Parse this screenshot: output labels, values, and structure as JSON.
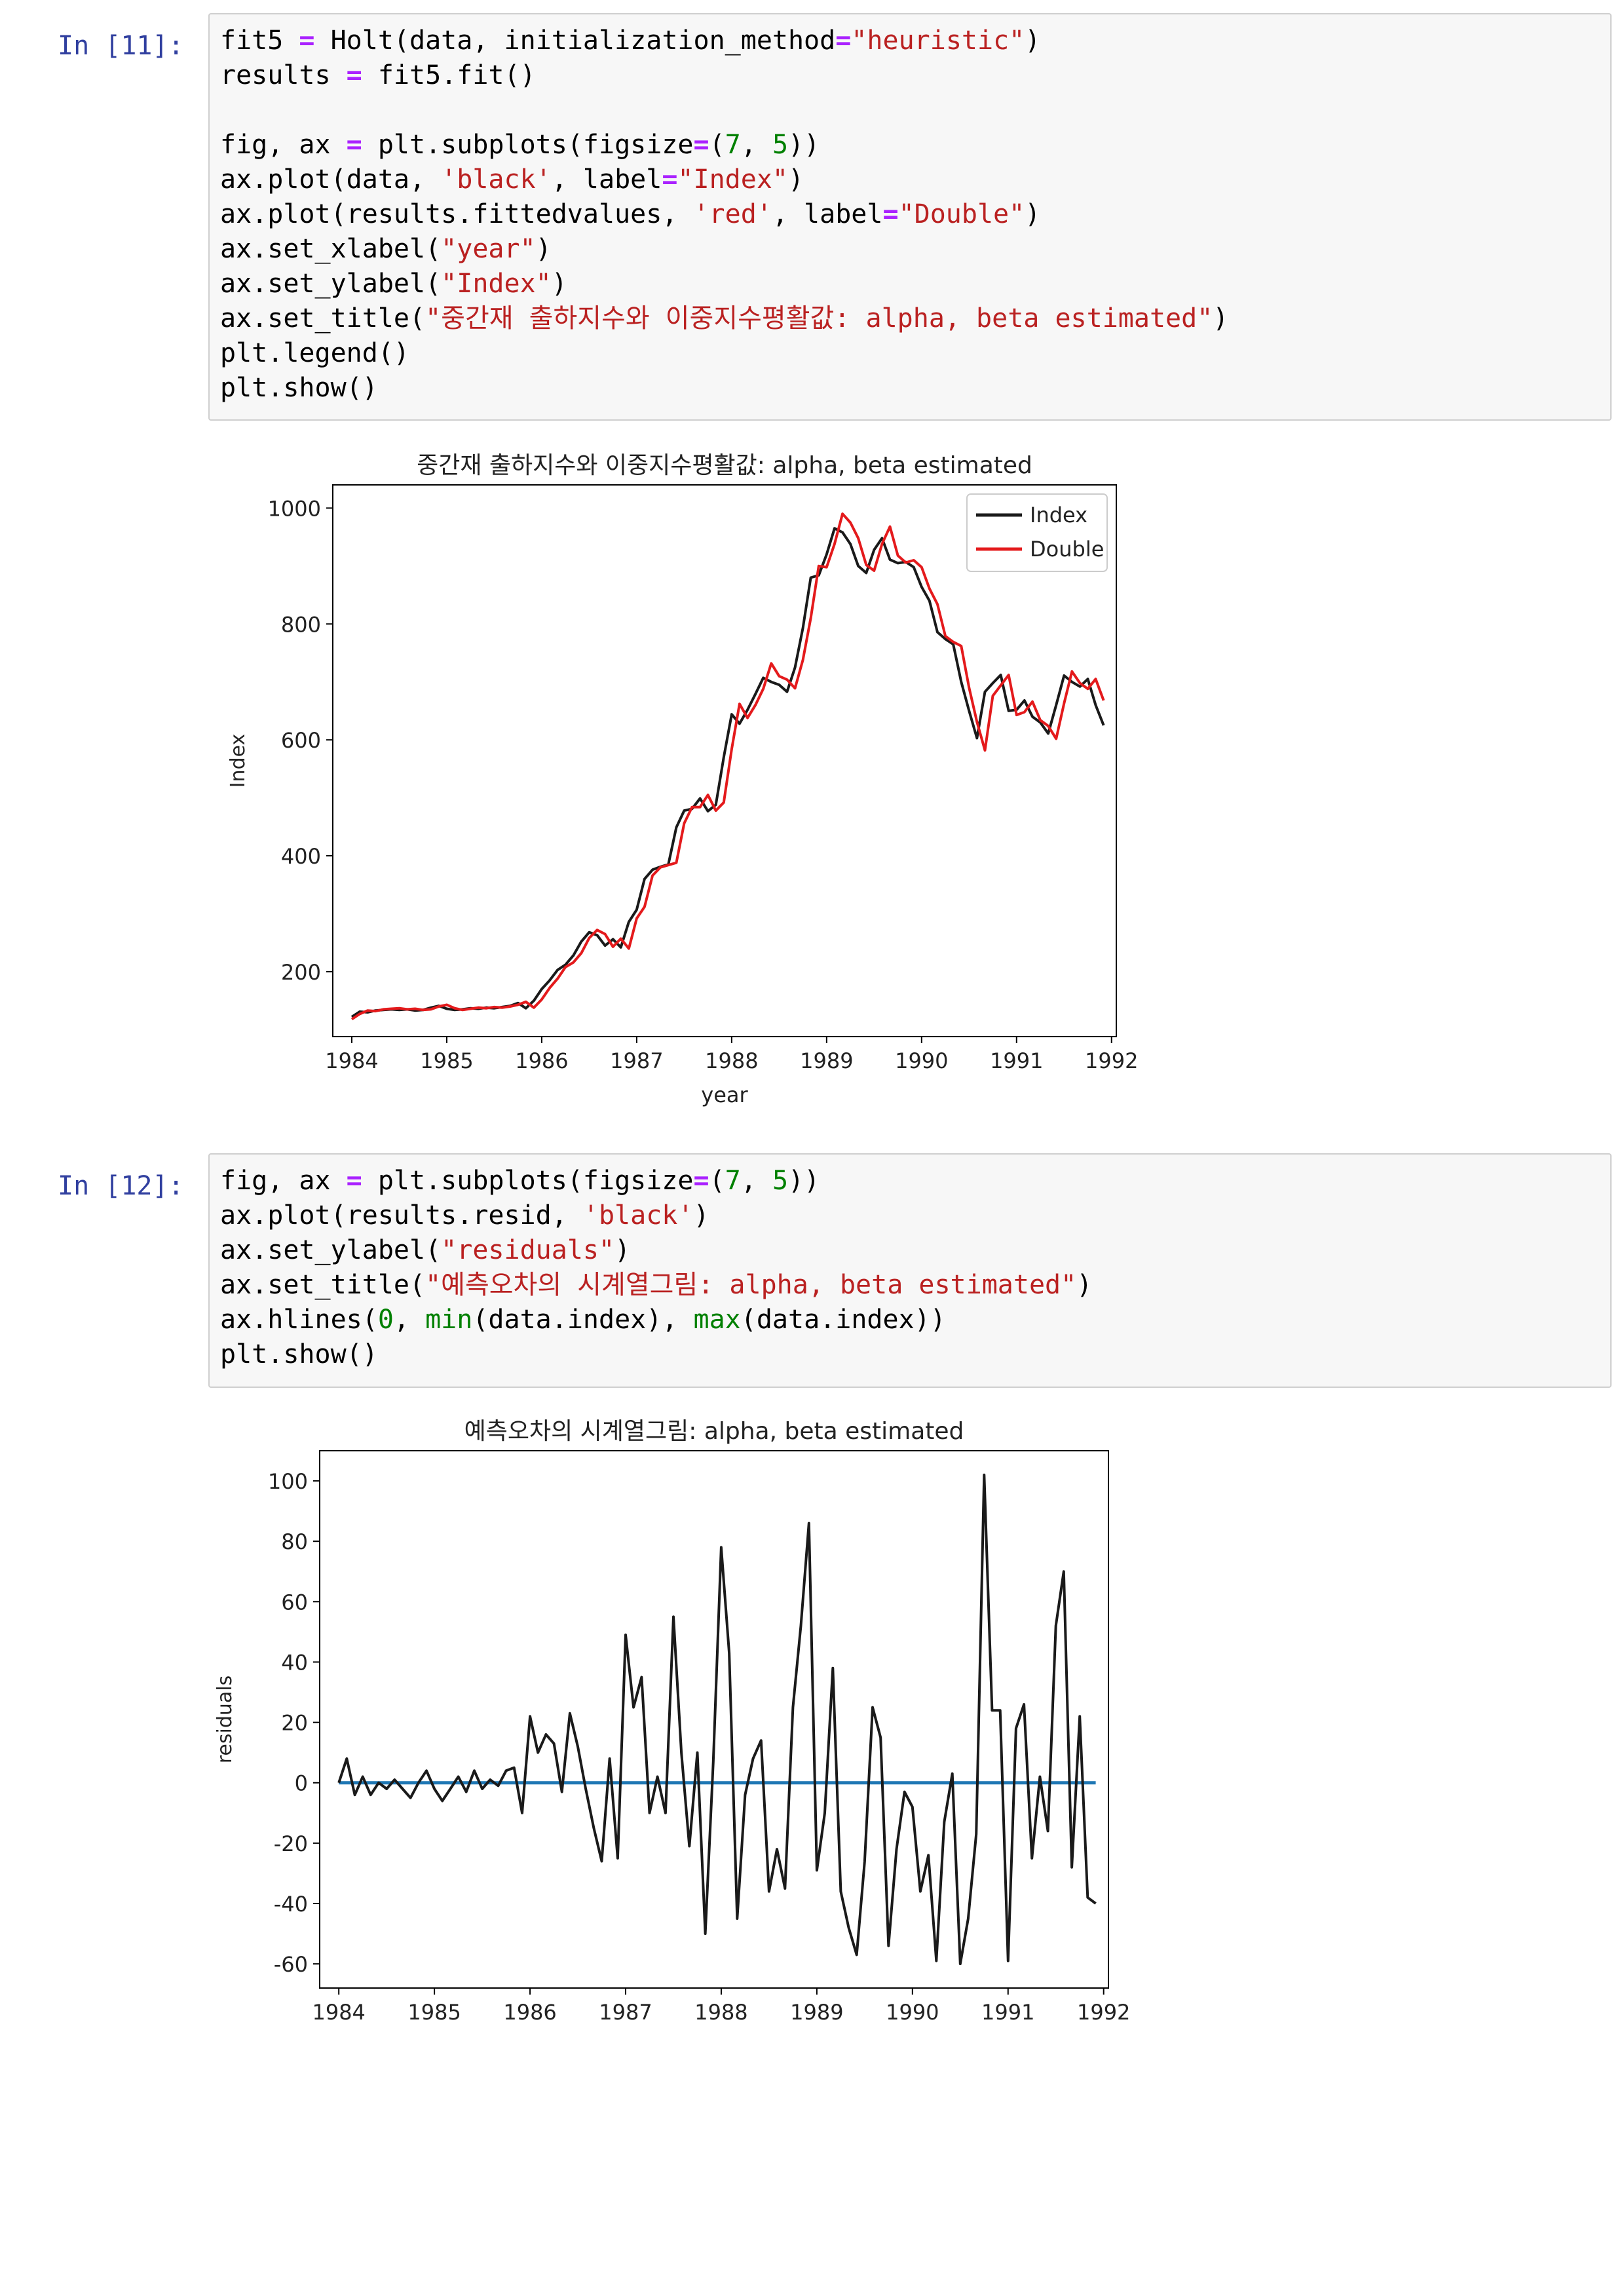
{
  "cell11": {
    "prompt": "In [11]:",
    "lines": [
      [
        [
          "t",
          "fit5 "
        ],
        [
          "o",
          "="
        ],
        [
          "t",
          " Holt(data, initialization_method"
        ],
        [
          "o",
          "="
        ],
        [
          "s",
          "\"heuristic\""
        ],
        [
          "t",
          ")"
        ]
      ],
      [
        [
          "t",
          "results "
        ],
        [
          "o",
          "="
        ],
        [
          "t",
          " fit5.fit()"
        ]
      ],
      [
        [
          "t",
          ""
        ]
      ],
      [
        [
          "t",
          "fig, ax "
        ],
        [
          "o",
          "="
        ],
        [
          "t",
          " plt.subplots(figsize"
        ],
        [
          "o",
          "="
        ],
        [
          "t",
          "("
        ],
        [
          "n",
          "7"
        ],
        [
          "t",
          ", "
        ],
        [
          "n",
          "5"
        ],
        [
          "t",
          "))"
        ]
      ],
      [
        [
          "t",
          "ax.plot(data, "
        ],
        [
          "s",
          "'black'"
        ],
        [
          "t",
          ", label"
        ],
        [
          "o",
          "="
        ],
        [
          "s",
          "\"Index\""
        ],
        [
          "t",
          ")"
        ]
      ],
      [
        [
          "t",
          "ax.plot(results.fittedvalues, "
        ],
        [
          "s",
          "'red'"
        ],
        [
          "t",
          ", label"
        ],
        [
          "o",
          "="
        ],
        [
          "s",
          "\"Double\""
        ],
        [
          "t",
          ")"
        ]
      ],
      [
        [
          "t",
          "ax.set_xlabel("
        ],
        [
          "s",
          "\"year\""
        ],
        [
          "t",
          ")"
        ]
      ],
      [
        [
          "t",
          "ax.set_ylabel("
        ],
        [
          "s",
          "\"Index\""
        ],
        [
          "t",
          ")"
        ]
      ],
      [
        [
          "t",
          "ax.set_title("
        ],
        [
          "s",
          "\"중간재 출하지수와 이중지수평활값: alpha, beta estimated\""
        ],
        [
          "t",
          ")"
        ]
      ],
      [
        [
          "t",
          "plt.legend()"
        ]
      ],
      [
        [
          "t",
          "plt.show()"
        ]
      ]
    ]
  },
  "cell12": {
    "prompt": "In [12]:",
    "lines": [
      [
        [
          "t",
          "fig, ax "
        ],
        [
          "o",
          "="
        ],
        [
          "t",
          " plt.subplots(figsize"
        ],
        [
          "o",
          "="
        ],
        [
          "t",
          "("
        ],
        [
          "n",
          "7"
        ],
        [
          "t",
          ", "
        ],
        [
          "n",
          "5"
        ],
        [
          "t",
          "))"
        ]
      ],
      [
        [
          "t",
          "ax.plot(results.resid, "
        ],
        [
          "s",
          "'black'"
        ],
        [
          "t",
          ")"
        ]
      ],
      [
        [
          "t",
          "ax.set_ylabel("
        ],
        [
          "s",
          "\"residuals\""
        ],
        [
          "t",
          ")"
        ]
      ],
      [
        [
          "t",
          "ax.set_title("
        ],
        [
          "s",
          "\"예측오차의 시계열그림: alpha, beta estimated\""
        ],
        [
          "t",
          ")"
        ]
      ],
      [
        [
          "t",
          "ax.hlines("
        ],
        [
          "n",
          "0"
        ],
        [
          "t",
          ", "
        ],
        [
          "b",
          "min"
        ],
        [
          "t",
          "(data.index), "
        ],
        [
          "b",
          "max"
        ],
        [
          "t",
          "(data.index))"
        ]
      ],
      [
        [
          "t",
          "plt.show()"
        ]
      ]
    ]
  },
  "colors": {
    "prompt": "#303f9f",
    "string": "#ba2121",
    "number": "#008000",
    "operator": "#aa22ff",
    "index_line": "#1a1a1a",
    "double_line": "#e41a1c",
    "hline": "#1f77b4"
  },
  "chart_data": [
    {
      "type": "line",
      "title": "중간재 출하지수와 이중지수평활값: alpha, beta estimated",
      "xlabel": "year",
      "ylabel": "Index",
      "xlim": [
        1983.8,
        1992.05
      ],
      "ylim": [
        88,
        1040
      ],
      "xticks": [
        1984,
        1985,
        1986,
        1987,
        1988,
        1989,
        1990,
        1991,
        1992
      ],
      "yticks": [
        200,
        400,
        600,
        800,
        1000
      ],
      "legend": "top-right",
      "series": [
        {
          "name": "Index",
          "color": "#1a1a1a",
          "x": [
            1984.0,
            1984.083,
            1984.167,
            1984.25,
            1984.333,
            1984.417,
            1984.5,
            1984.583,
            1984.667,
            1984.75,
            1984.833,
            1984.917,
            1985.0,
            1985.083,
            1985.167,
            1985.25,
            1985.333,
            1985.417,
            1985.5,
            1985.583,
            1985.667,
            1985.75,
            1985.833,
            1985.917,
            1986.0,
            1986.083,
            1986.167,
            1986.25,
            1986.333,
            1986.417,
            1986.5,
            1986.583,
            1986.667,
            1986.75,
            1986.833,
            1986.917,
            1987.0,
            1987.083,
            1987.167,
            1987.25,
            1987.333,
            1987.417,
            1987.5,
            1987.583,
            1987.667,
            1987.75,
            1987.833,
            1987.917,
            1988.0,
            1988.083,
            1988.167,
            1988.25,
            1988.333,
            1988.417,
            1988.5,
            1988.583,
            1988.667,
            1988.75,
            1988.833,
            1988.917,
            1989.0,
            1989.083,
            1989.167,
            1989.25,
            1989.333,
            1989.417,
            1989.5,
            1989.583,
            1989.667,
            1989.75,
            1989.833,
            1989.917,
            1990.0,
            1990.083,
            1990.167,
            1990.25,
            1990.333,
            1990.417,
            1990.5,
            1990.583,
            1990.667,
            1990.75,
            1990.833,
            1990.917,
            1991.0,
            1991.083,
            1991.167,
            1991.25,
            1991.333,
            1991.417,
            1991.5,
            1991.583,
            1991.667,
            1991.75,
            1991.833,
            1991.917
          ],
          "values": [
            122,
            131,
            130,
            133,
            134,
            135,
            134,
            135,
            133,
            134,
            138,
            141,
            136,
            134,
            135,
            137,
            136,
            138,
            137,
            139,
            141,
            146,
            137,
            150,
            170,
            185,
            203,
            212,
            228,
            252,
            268,
            263,
            245,
            256,
            242,
            286,
            307,
            360,
            376,
            381,
            385,
            449,
            478,
            481,
            499,
            477,
            488,
            570,
            644,
            628,
            652,
            679,
            707,
            700,
            695,
            683,
            725,
            793,
            880,
            884,
            920,
            965,
            958,
            938,
            900,
            888,
            928,
            948,
            911,
            905,
            907,
            898,
            864,
            840,
            786,
            774,
            765,
            700,
            650,
            603,
            683,
            698,
            712,
            650,
            652,
            668,
            640,
            630,
            611,
            660,
            711,
            700,
            692,
            705,
            660,
            625
          ]
        },
        {
          "name": "Double",
          "color": "#e41a1c",
          "x": [
            1984.0,
            1984.083,
            1984.167,
            1984.25,
            1984.333,
            1984.417,
            1984.5,
            1984.583,
            1984.667,
            1984.75,
            1984.833,
            1984.917,
            1985.0,
            1985.083,
            1985.167,
            1985.25,
            1985.333,
            1985.417,
            1985.5,
            1985.583,
            1985.667,
            1985.75,
            1985.833,
            1985.917,
            1986.0,
            1986.083,
            1986.167,
            1986.25,
            1986.333,
            1986.417,
            1986.5,
            1986.583,
            1986.667,
            1986.75,
            1986.833,
            1986.917,
            1987.0,
            1987.083,
            1987.167,
            1987.25,
            1987.333,
            1987.417,
            1987.5,
            1987.583,
            1987.667,
            1987.75,
            1987.833,
            1987.917,
            1988.0,
            1988.083,
            1988.167,
            1988.25,
            1988.333,
            1988.417,
            1988.5,
            1988.583,
            1988.667,
            1988.75,
            1988.833,
            1988.917,
            1989.0,
            1989.083,
            1989.167,
            1989.25,
            1989.333,
            1989.417,
            1989.5,
            1989.583,
            1989.667,
            1989.75,
            1989.833,
            1989.917,
            1990.0,
            1990.083,
            1990.167,
            1990.25,
            1990.333,
            1990.417,
            1990.5,
            1990.583,
            1990.667,
            1990.75,
            1990.833,
            1990.917,
            1991.0,
            1991.083,
            1991.167,
            1991.25,
            1991.333,
            1991.417,
            1991.5,
            1991.583,
            1991.667,
            1991.75,
            1991.833,
            1991.917
          ],
          "values": [
            118,
            127,
            133,
            132,
            135,
            136,
            137,
            135,
            136,
            134,
            135,
            140,
            143,
            137,
            134,
            136,
            138,
            137,
            139,
            138,
            140,
            143,
            148,
            138,
            152,
            172,
            188,
            208,
            216,
            232,
            258,
            272,
            265,
            243,
            257,
            240,
            292,
            312,
            366,
            380,
            384,
            388,
            456,
            484,
            484,
            505,
            478,
            492,
            584,
            662,
            638,
            660,
            688,
            732,
            710,
            704,
            689,
            738,
            810,
            900,
            898,
            938,
            990,
            975,
            948,
            902,
            892,
            938,
            968,
            918,
            906,
            910,
            898,
            861,
            834,
            779,
            769,
            762,
            690,
            631,
            582,
            676,
            694,
            712,
            643,
            648,
            666,
            634,
            624,
            602,
            663,
            718,
            698,
            688,
            705,
            668
          ]
        }
      ]
    },
    {
      "type": "line",
      "title": "예측오차의 시계열그림: alpha, beta estimated",
      "xlabel": "",
      "ylabel": "residuals",
      "xlim": [
        1983.8,
        1992.05
      ],
      "ylim": [
        -68,
        110
      ],
      "xticks": [
        1984,
        1985,
        1986,
        1987,
        1988,
        1989,
        1990,
        1991,
        1992
      ],
      "yticks": [
        -60,
        -40,
        -20,
        0,
        20,
        40,
        60,
        80,
        100
      ],
      "hline": {
        "y": 0,
        "xmin": 1984.0,
        "xmax": 1991.917,
        "color": "#1f77b4"
      },
      "series": [
        {
          "color": "#1a1a1a",
          "x": [
            1984.0,
            1984.083,
            1984.167,
            1984.25,
            1984.333,
            1984.417,
            1984.5,
            1984.583,
            1984.667,
            1984.75,
            1984.833,
            1984.917,
            1985.0,
            1985.083,
            1985.167,
            1985.25,
            1985.333,
            1985.417,
            1985.5,
            1985.583,
            1985.667,
            1985.75,
            1985.833,
            1985.917,
            1986.0,
            1986.083,
            1986.167,
            1986.25,
            1986.333,
            1986.417,
            1986.5,
            1986.583,
            1986.667,
            1986.75,
            1986.833,
            1986.917,
            1987.0,
            1987.083,
            1987.167,
            1987.25,
            1987.333,
            1987.417,
            1987.5,
            1987.583,
            1987.667,
            1987.75,
            1987.833,
            1987.917,
            1988.0,
            1988.083,
            1988.167,
            1988.25,
            1988.333,
            1988.417,
            1988.5,
            1988.583,
            1988.667,
            1988.75,
            1988.833,
            1988.917,
            1989.0,
            1989.083,
            1989.167,
            1989.25,
            1989.333,
            1989.417,
            1989.5,
            1989.583,
            1989.667,
            1989.75,
            1989.833,
            1989.917,
            1990.0,
            1990.083,
            1990.167,
            1990.25,
            1990.333,
            1990.417,
            1990.5,
            1990.583,
            1990.667,
            1990.75,
            1990.833,
            1990.917,
            1991.0,
            1991.083,
            1991.167,
            1991.25,
            1991.333,
            1991.417,
            1991.5,
            1991.583,
            1991.667,
            1991.75,
            1991.833,
            1991.917
          ],
          "values": [
            0,
            8,
            -4,
            2,
            -4,
            0,
            -2,
            1,
            -2,
            -5,
            0,
            4,
            -2,
            -6,
            -2,
            2,
            -3,
            4,
            -2,
            1,
            -1,
            4,
            5,
            -10,
            22,
            10,
            16,
            13,
            -3,
            23,
            12,
            -2,
            -15,
            -26,
            8,
            -25,
            49,
            25,
            35,
            -10,
            2,
            -10,
            55,
            10,
            -21,
            10,
            -50,
            7,
            78,
            43,
            -45,
            -4,
            8,
            14,
            -36,
            -22,
            -35,
            25,
            52,
            86,
            -29,
            -10,
            38,
            -36,
            -48,
            -57,
            -26,
            25,
            15,
            -54,
            -22,
            -3,
            -8,
            -36,
            -24,
            -59,
            -13,
            3,
            -60,
            -45,
            -17,
            102,
            24,
            24,
            -59,
            18,
            26,
            -25,
            2,
            -16,
            52,
            70,
            -28,
            22,
            -38,
            -40
          ]
        }
      ]
    }
  ]
}
